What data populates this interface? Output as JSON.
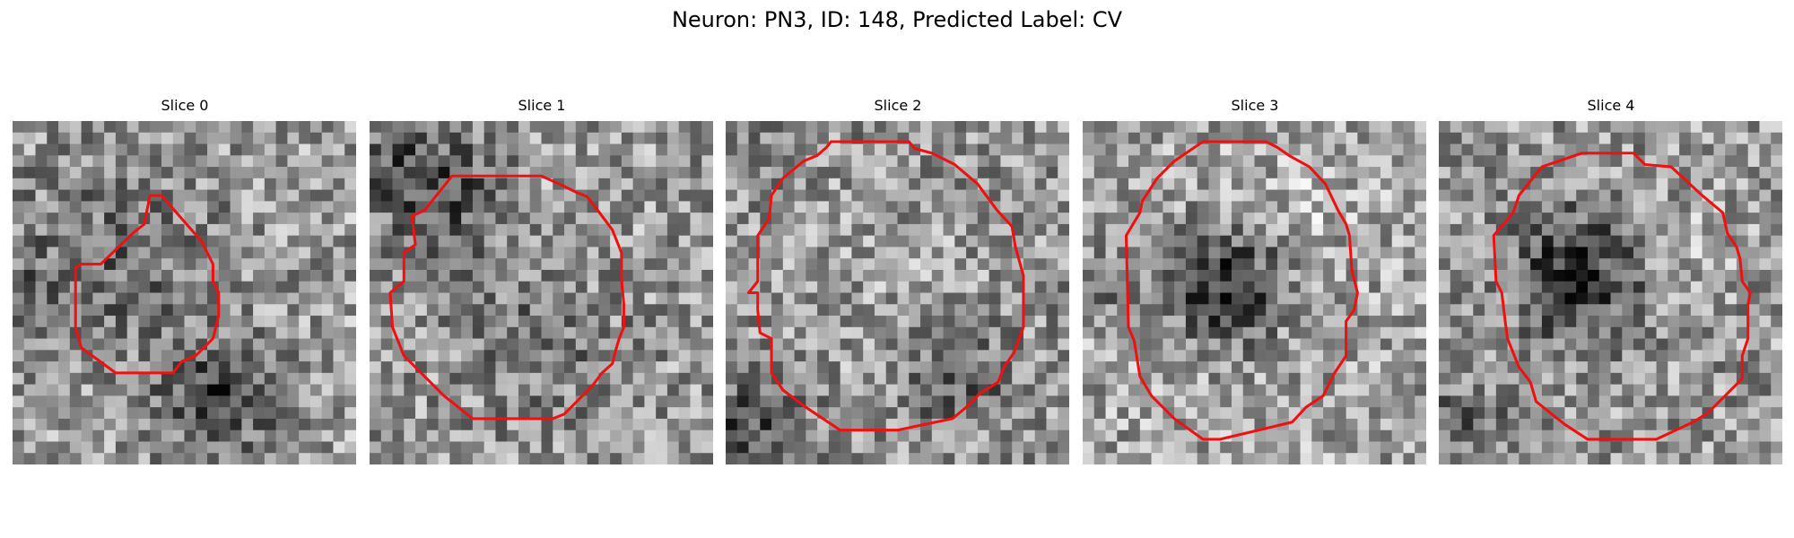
{
  "figure": {
    "title": "Neuron: PN3, ID: 148, Predicted Label: CV"
  },
  "panels": [
    {
      "title": "Slice 0"
    },
    {
      "title": "Slice 1"
    },
    {
      "title": "Slice 2"
    },
    {
      "title": "Slice 3"
    },
    {
      "title": "Slice 4"
    }
  ],
  "colors": {
    "contour": "#ee1111",
    "colormap": "gray"
  }
}
